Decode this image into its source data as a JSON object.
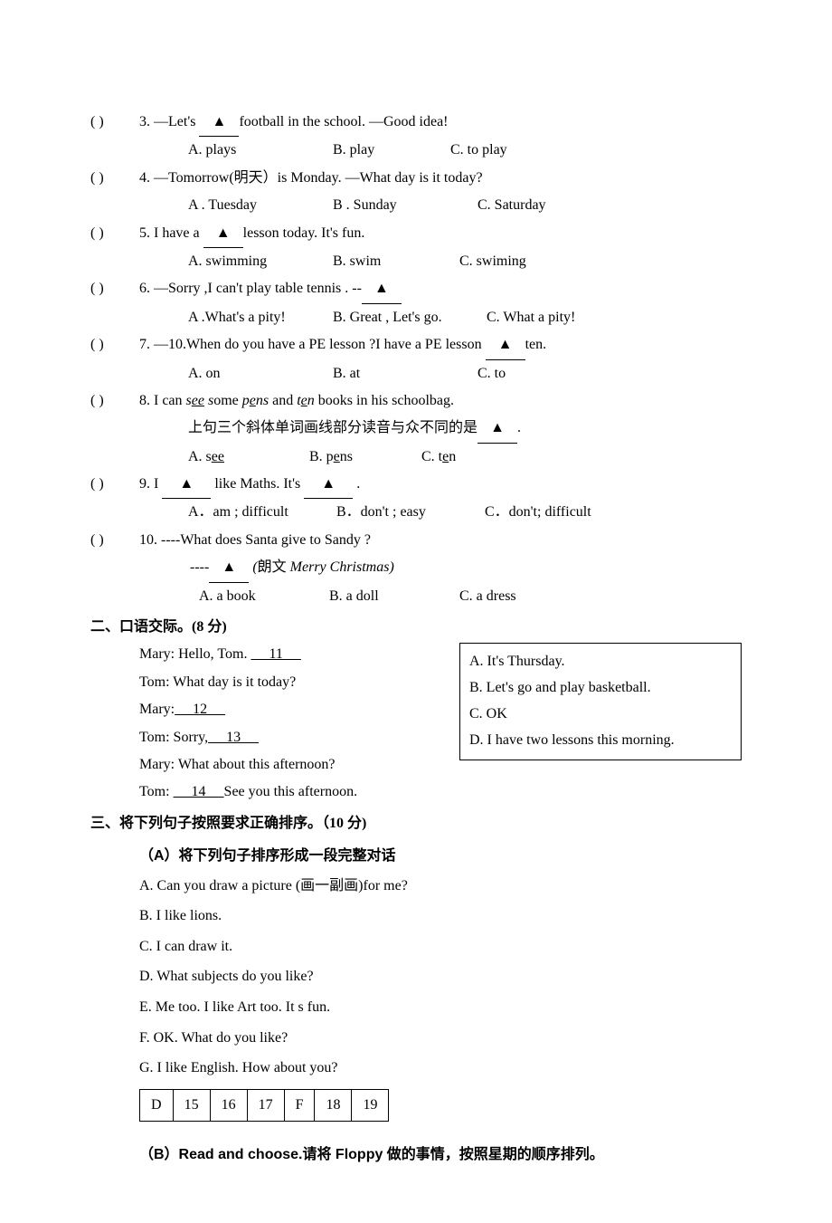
{
  "mc": [
    {
      "num": "3",
      "pre": "—Let's ",
      "post": "football   in the school.        —Good idea!",
      "opts": [
        "A. plays",
        "B. play",
        "C. to play"
      ],
      "widths": [
        160,
        130,
        0
      ]
    },
    {
      "num": "4",
      "pre": "—Tomorrow(明天）is Monday. —What day is it today?",
      "post": "",
      "noblank": true,
      "opts": [
        "A . Tuesday",
        "B . Sunday",
        "C. Saturday"
      ],
      "widths": [
        160,
        160,
        0
      ]
    },
    {
      "num": "5",
      "pre": "I have a  ",
      "post": "lesson today. It's fun.",
      "opts": [
        "A. swimming",
        "B. swim",
        "C. swiming"
      ],
      "widths": [
        160,
        140,
        0
      ]
    },
    {
      "num": "6",
      "pre": "—Sorry ,I can't play table tennis .     --",
      "post": "",
      "opts": [
        "A .What's a pity!",
        "B. Great , Let's go.",
        "C. What a pity!"
      ],
      "widths": [
        160,
        170,
        0
      ]
    },
    {
      "num": "7",
      "pre": "—10.When do you have a PE lesson ?I have a PE lesson  ",
      "post": "ten.",
      "opts": [
        "A. on",
        "B. at",
        "C. to"
      ],
      "widths": [
        160,
        160,
        0
      ]
    }
  ],
  "q8": {
    "num": "8",
    "sentence_parts": [
      "I can ",
      "see s",
      "ome ",
      "pens",
      " and ",
      "ten",
      " books in his schoolbag."
    ],
    "note": "上句三个斜体单词画线部分读音与众不同的是",
    "opts": [
      {
        "label": "A. s",
        "u": "ee"
      },
      {
        "label": "B. p",
        "u": "e",
        "tail": "ns"
      },
      {
        "label": "C. t",
        "u": "e",
        "tail": "n"
      }
    ],
    "widths": [
      130,
      120,
      0
    ]
  },
  "q9": {
    "num": "9",
    "opts": [
      "A．am ; difficult",
      "B．don't ; easy",
      "C．don't; difficult"
    ],
    "widths": [
      160,
      160,
      0
    ]
  },
  "q10": {
    "num": "10",
    "q": "----What does Santa give to Sandy ?",
    "hint_pre": " ----",
    "hint_post": "  (朗文 Merry Christmas)",
    "opts": [
      "A. a book",
      "B. a doll",
      "C. a dress"
    ],
    "widths": [
      140,
      140,
      0
    ]
  },
  "sec2": {
    "title": "二、口语交际。(8 分)",
    "lines": [
      "Mary: Hello, Tom. ____11_____",
      "Tom: What day is it today?",
      "Mary:_____12______",
      "Tom: Sorry,_____13_____",
      "Mary: What about this afternoon?",
      "Tom:  ______14______See you this afternoon."
    ],
    "box": [
      "A. It's Thursday.",
      "B. Let's go and play basketball.",
      "C. OK",
      "D. I have two lessons this morning."
    ]
  },
  "sec3": {
    "title": "三、将下列句子按照要求正确排序。（10 分)",
    "partA_title": "（A）将下列句子排序形成一段完整对话",
    "sents": [
      "A. Can you draw a picture (画一副画)for me?",
      "B. I like lions.",
      "C. I can draw it.",
      "D. What subjects do you like?",
      "E. Me too. I like Art too. It s fun.",
      "F. OK. What do you like?",
      "G. I like English. How about you?"
    ],
    "seq": [
      "D",
      "15",
      "16",
      "17",
      "F",
      "18",
      "19"
    ],
    "partB_title": "（B）Read and choose.请将 Floppy 做的事情，按照星期的顺序排列。"
  }
}
